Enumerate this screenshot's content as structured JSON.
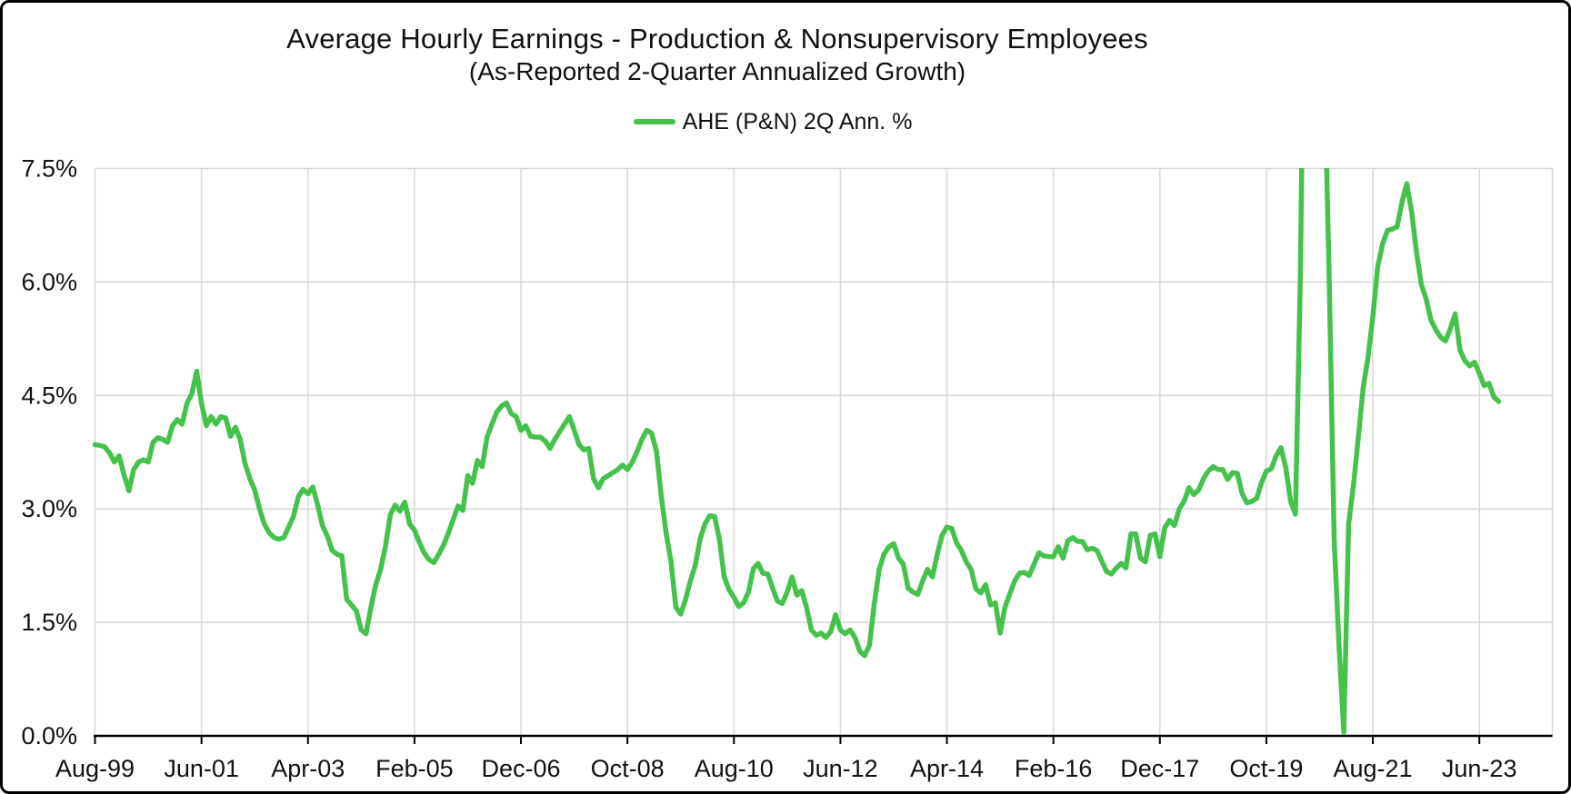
{
  "chart": {
    "title": "Average Hourly Earnings - Production & Nonsupervisory Employees",
    "subtitle": "(As-Reported 2-Quarter Annualized Growth)",
    "legend_label": "AHE (P&N) 2Q Ann. %"
  },
  "chart_data": {
    "type": "line",
    "title": "Average Hourly Earnings - Production & Nonsupervisory Employees",
    "subtitle": "(As-Reported 2-Quarter Annualized Growth)",
    "legend": [
      "AHE (P&N) 2Q Ann. %"
    ],
    "legend_position": "top-center",
    "grid": true,
    "line_color": "#45c24b",
    "grid_color": "#d9d9d9",
    "axis_color": "#000000",
    "ylim": [
      0,
      7.5
    ],
    "y_tick_labels": [
      "0.0%",
      "1.5%",
      "3.0%",
      "4.5%",
      "6.0%",
      "7.5%"
    ],
    "x_tick_labels": [
      "Aug-99",
      "Jun-01",
      "Apr-03",
      "Feb-05",
      "Dec-06",
      "Oct-08",
      "Aug-10",
      "Jun-12",
      "Apr-14",
      "Feb-16",
      "Dec-17",
      "Oct-19",
      "Aug-21",
      "Jun-23"
    ],
    "x_tick_interval_months": 22,
    "x_start": "Aug-1999",
    "x_end": "Oct-2023",
    "frequency": "monthly",
    "note": "values above 7.5 are clipped at the top of the plot (2020 COVID spike)",
    "series": [
      {
        "name": "AHE (P&N) 2Q Ann. %",
        "values": [
          3.85,
          3.84,
          3.82,
          3.74,
          3.62,
          3.7,
          3.45,
          3.24,
          3.52,
          3.62,
          3.65,
          3.62,
          3.88,
          3.94,
          3.92,
          3.88,
          4.1,
          4.18,
          4.12,
          4.4,
          4.52,
          4.82,
          4.4,
          4.1,
          4.22,
          4.12,
          4.22,
          4.2,
          3.96,
          4.08,
          3.92,
          3.6,
          3.4,
          3.25,
          3.0,
          2.8,
          2.68,
          2.62,
          2.6,
          2.62,
          2.76,
          2.9,
          3.16,
          3.26,
          3.2,
          3.29,
          3.05,
          2.78,
          2.64,
          2.45,
          2.4,
          2.38,
          1.8,
          1.73,
          1.65,
          1.4,
          1.35,
          1.7,
          2.0,
          2.2,
          2.5,
          2.92,
          3.05,
          2.97,
          3.09,
          2.8,
          2.72,
          2.56,
          2.42,
          2.33,
          2.29,
          2.4,
          2.52,
          2.68,
          2.86,
          3.04,
          2.98,
          3.44,
          3.34,
          3.64,
          3.56,
          3.95,
          4.12,
          4.28,
          4.36,
          4.4,
          4.26,
          4.22,
          4.04,
          4.1,
          3.96,
          3.95,
          3.95,
          3.9,
          3.8,
          3.92,
          4.02,
          4.12,
          4.22,
          4.04,
          3.85,
          3.78,
          3.8,
          3.4,
          3.28,
          3.4,
          3.44,
          3.48,
          3.52,
          3.58,
          3.52,
          3.62,
          3.76,
          3.92,
          4.04,
          4.0,
          3.76,
          3.16,
          2.68,
          2.3,
          1.7,
          1.61,
          1.8,
          2.05,
          2.25,
          2.6,
          2.8,
          2.91,
          2.9,
          2.6,
          2.1,
          1.93,
          1.83,
          1.71,
          1.76,
          1.9,
          2.21,
          2.28,
          2.15,
          2.14,
          1.95,
          1.78,
          1.75,
          1.9,
          2.1,
          1.86,
          1.92,
          1.7,
          1.4,
          1.33,
          1.36,
          1.3,
          1.38,
          1.6,
          1.4,
          1.35,
          1.4,
          1.3,
          1.12,
          1.06,
          1.2,
          1.75,
          2.2,
          2.4,
          2.5,
          2.54,
          2.35,
          2.27,
          1.95,
          1.9,
          1.87,
          2.05,
          2.2,
          2.1,
          2.4,
          2.65,
          2.76,
          2.74,
          2.55,
          2.45,
          2.3,
          2.2,
          1.94,
          1.89,
          2.0,
          1.73,
          1.76,
          1.36,
          1.7,
          1.88,
          2.05,
          2.15,
          2.16,
          2.12,
          2.27,
          2.42,
          2.38,
          2.37,
          2.37,
          2.5,
          2.35,
          2.58,
          2.62,
          2.57,
          2.57,
          2.46,
          2.48,
          2.45,
          2.31,
          2.17,
          2.14,
          2.22,
          2.28,
          2.22,
          2.67,
          2.67,
          2.35,
          2.3,
          2.65,
          2.67,
          2.37,
          2.75,
          2.85,
          2.78,
          3.0,
          3.1,
          3.28,
          3.19,
          3.25,
          3.4,
          3.5,
          3.56,
          3.52,
          3.52,
          3.39,
          3.48,
          3.47,
          3.2,
          3.08,
          3.1,
          3.14,
          3.35,
          3.5,
          3.53,
          3.7,
          3.81,
          3.55,
          3.1,
          2.93,
          6.0,
          11.0,
          13.0,
          13.0,
          11.0,
          8.8,
          6.0,
          2.6,
          1.2,
          0.05,
          2.8,
          3.32,
          3.95,
          4.6,
          5.0,
          5.55,
          6.2,
          6.5,
          6.68,
          6.7,
          6.73,
          7.05,
          7.3,
          6.93,
          6.4,
          5.97,
          5.78,
          5.5,
          5.37,
          5.27,
          5.22,
          5.38,
          5.58,
          5.1,
          4.96,
          4.89,
          4.94,
          4.79,
          4.63,
          4.66,
          4.48,
          4.42
        ]
      }
    ]
  }
}
